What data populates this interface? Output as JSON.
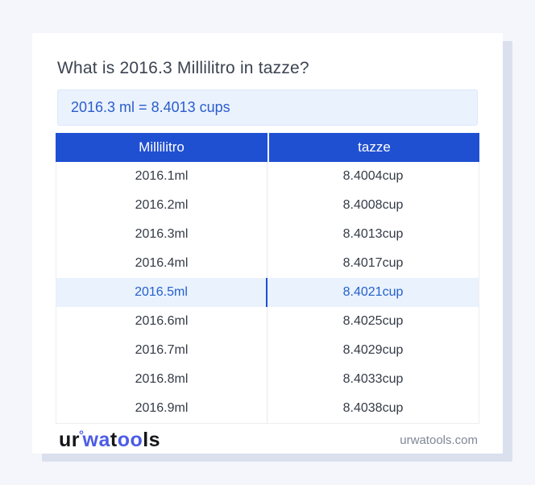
{
  "page": {
    "title": "What is 2016.3 Millilitro in tazze?",
    "result": "2016.3 ml = 8.4013 cups"
  },
  "table": {
    "headers": [
      "Millilitro",
      "tazze"
    ],
    "rows": [
      {
        "ml": "2016.1ml",
        "cup": "8.4004cup",
        "active": false
      },
      {
        "ml": "2016.2ml",
        "cup": "8.4008cup",
        "active": false
      },
      {
        "ml": "2016.3ml",
        "cup": "8.4013cup",
        "active": false
      },
      {
        "ml": "2016.4ml",
        "cup": "8.4017cup",
        "active": false
      },
      {
        "ml": "2016.5ml",
        "cup": "8.4021cup",
        "active": true
      },
      {
        "ml": "2016.6ml",
        "cup": "8.4025cup",
        "active": false
      },
      {
        "ml": "2016.7ml",
        "cup": "8.4029cup",
        "active": false
      },
      {
        "ml": "2016.8ml",
        "cup": "8.4033cup",
        "active": false
      },
      {
        "ml": "2016.9ml",
        "cup": "8.4038cup",
        "active": false
      }
    ]
  },
  "footer": {
    "logo": {
      "part_ur": "ur",
      "ring": "°",
      "part_wa": "wa",
      "part_t": "t",
      "part_oo": "oo",
      "part_ls": "ls"
    },
    "domain": "urwatools.com"
  },
  "colors": {
    "page_background": "#f4f6fb",
    "card_background": "#ffffff",
    "card_shadow": "#dae0ee",
    "header_blue": "#1f50d2",
    "result_box_background": "#eaf2fd",
    "result_text_blue": "#2b5dcd",
    "active_row_background": "#e9f2fd",
    "active_row_text": "#2560cc",
    "active_divider_blue": "#1e4fd2",
    "cell_text": "#343b47",
    "logo_blue": "#4c5ce6",
    "domain_text": "#7e8796"
  }
}
